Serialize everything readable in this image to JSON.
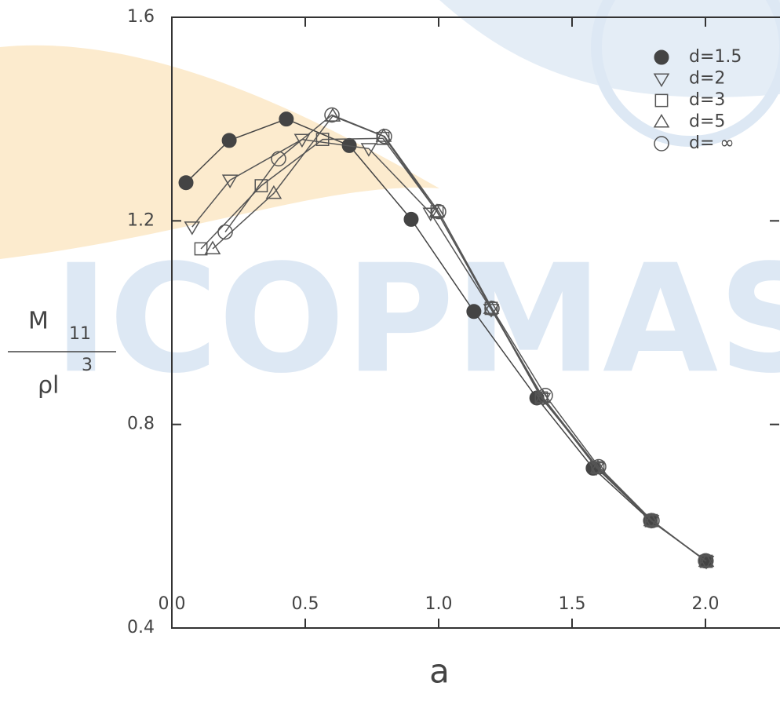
{
  "chart_data": {
    "type": "line",
    "watermark": "ICOPMAS",
    "xlabel": "a",
    "ylabel": {
      "top": "M",
      "top_sub": "11",
      "bottom": "ρl",
      "bottom_sup": "3"
    },
    "xlim": [
      0,
      2.28
    ],
    "ylim": [
      0.4,
      1.6
    ],
    "xticks": [
      {
        "value": 0,
        "label": "0.0"
      },
      0.5,
      {
        "value": 1,
        "label": "1.0"
      },
      1.5,
      {
        "value": 2,
        "label": "2.0"
      }
    ],
    "yticks": [
      0.4,
      0.8,
      1.2,
      1.6
    ],
    "series": [
      {
        "name": "d=1.5",
        "marker": "filled-circle",
        "color": "#444444",
        "x": [
          0.053,
          0.215,
          0.429,
          0.665,
          0.897,
          1.132,
          1.368,
          1.579,
          1.794,
          2.003
        ],
        "values": [
          1.275,
          1.358,
          1.4,
          1.348,
          1.203,
          1.022,
          0.852,
          0.714,
          0.611,
          0.532
        ]
      },
      {
        "name": "d=2",
        "marker": "down-triangle",
        "color": "#555555",
        "x": [
          0.076,
          0.218,
          0.488,
          0.738,
          0.97,
          1.197,
          1.391,
          1.591,
          1.797,
          2.003
        ],
        "values": [
          1.188,
          1.28,
          1.36,
          1.342,
          1.215,
          1.026,
          0.851,
          0.715,
          0.611,
          0.531
        ]
      },
      {
        "name": "d=3",
        "marker": "square",
        "color": "#555555",
        "x": [
          0.109,
          0.335,
          0.565,
          0.791,
          0.994,
          1.197,
          1.385,
          1.597,
          1.797,
          2.003
        ],
        "values": [
          1.145,
          1.269,
          1.36,
          1.362,
          1.218,
          1.028,
          0.852,
          0.715,
          0.611,
          0.531
        ]
      },
      {
        "name": "d=5",
        "marker": "up-triangle",
        "color": "#555555",
        "x": [
          0.153,
          0.382,
          0.603,
          0.794,
          0.994,
          1.197,
          1.391,
          1.597,
          1.797,
          2.003
        ],
        "values": [
          1.145,
          1.254,
          1.406,
          1.366,
          1.218,
          1.028,
          0.853,
          0.715,
          0.611,
          0.531
        ]
      },
      {
        "name": "d= ∞",
        "marker": "circle",
        "color": "#555555",
        "x": [
          0.2,
          0.4,
          0.6,
          0.797,
          1.0,
          1.2,
          1.4,
          1.6,
          1.8,
          2.0
        ],
        "values": [
          1.178,
          1.322,
          1.408,
          1.366,
          1.218,
          1.028,
          0.857,
          0.717,
          0.611,
          0.532
        ]
      }
    ]
  }
}
